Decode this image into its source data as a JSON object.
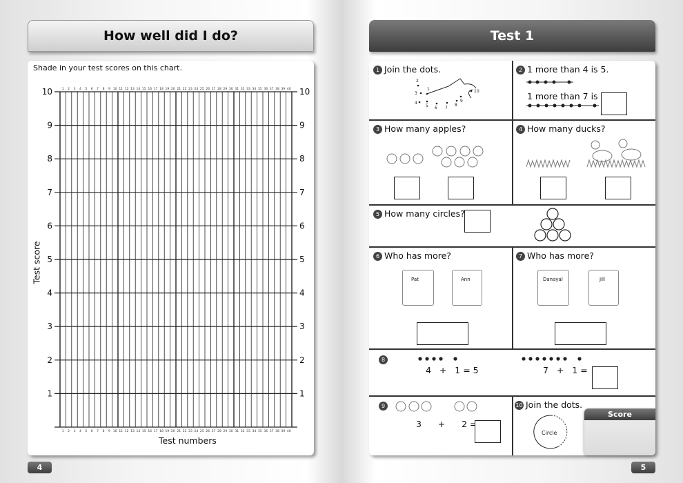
{
  "left": {
    "title": "How well did I do?",
    "instruction": "Shade in your test scores on this chart.",
    "page": "4",
    "chart_data": {
      "type": "table",
      "title": "",
      "xlabel": "Test numbers",
      "ylabel": "Test score",
      "ylim": [
        0,
        10
      ],
      "yticks": [
        1,
        2,
        3,
        4,
        5,
        6,
        7,
        8,
        9,
        10
      ],
      "xcategories": [
        1,
        2,
        3,
        4,
        5,
        6,
        7,
        8,
        9,
        10,
        11,
        12,
        13,
        14,
        15,
        16,
        17,
        18,
        19,
        20,
        21,
        22,
        23,
        24,
        25,
        26,
        27,
        28,
        29,
        30,
        31,
        32,
        33,
        34,
        35,
        36,
        37,
        38,
        39,
        40
      ],
      "grid": true
    }
  },
  "right": {
    "title": "Test 1",
    "page": "5",
    "q1": {
      "n": "1",
      "text": "Join the dots.",
      "dots": [
        "1",
        "2",
        "3",
        "4",
        "5",
        "6",
        "7",
        "8",
        "9",
        "10"
      ]
    },
    "q2": {
      "n": "2",
      "text": "1 more than 4 is 5.",
      "text2": "1 more than 7 is"
    },
    "q3": {
      "n": "3",
      "text": "How many apples?"
    },
    "q4": {
      "n": "4",
      "text": "How many ducks?"
    },
    "q5": {
      "n": "5",
      "text": "How many circles?"
    },
    "q6": {
      "n": "6",
      "text": "Who has more?",
      "bag1": "Pat",
      "bag2": "Ann"
    },
    "q7": {
      "n": "7",
      "text": "Who has more?",
      "bag1": "Danayal",
      "bag2": "Jill"
    },
    "q8": {
      "n": "8",
      "eq1": "4   +   1 = 5",
      "eq2": "7   +   1 ="
    },
    "q9": {
      "n": "9",
      "eq": "3      +      2 ="
    },
    "q10": {
      "n": "10",
      "text": "Join the dots.",
      "circle": "Circle"
    },
    "score": {
      "label": "Score"
    }
  }
}
